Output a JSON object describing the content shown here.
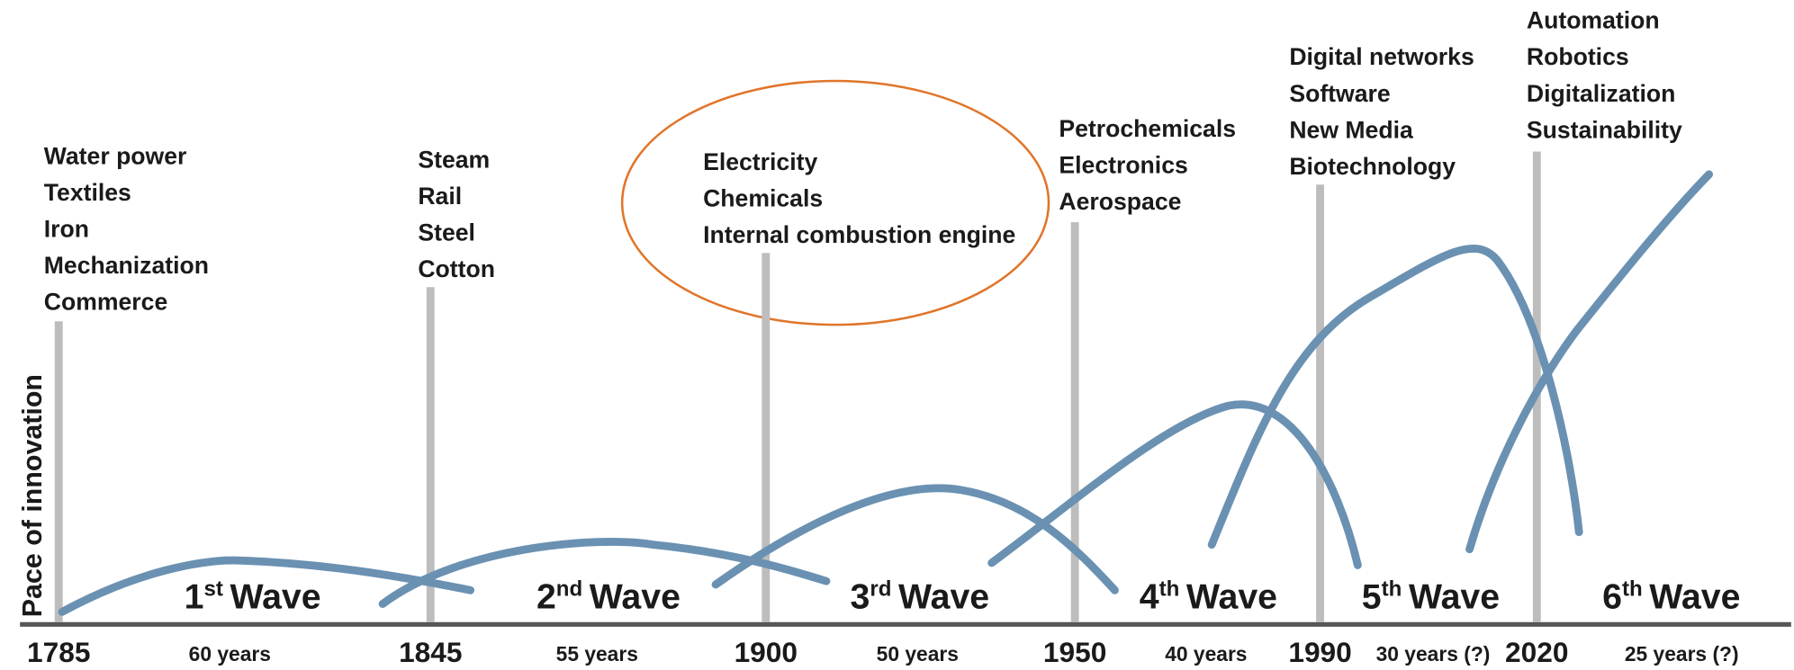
{
  "y_axis_label": "Pace of innovation",
  "years": [
    "1785",
    "1845",
    "1900",
    "1950",
    "1990",
    "2020"
  ],
  "waves": [
    {
      "number": "1",
      "suffix": "st",
      "word": "Wave",
      "duration": "60 years"
    },
    {
      "number": "2",
      "suffix": "nd",
      "word": "Wave",
      "duration": "55 years"
    },
    {
      "number": "3",
      "suffix": "rd",
      "word": "Wave",
      "duration": "50 years"
    },
    {
      "number": "4",
      "suffix": "th",
      "word": "Wave",
      "duration": "40 years"
    },
    {
      "number": "5",
      "suffix": "th",
      "word": "Wave",
      "duration": "30 years (?)"
    },
    {
      "number": "6",
      "suffix": "th",
      "word": "Wave",
      "duration": "25 years (?)"
    }
  ],
  "technologies": [
    [
      "Water power",
      "Textiles",
      "Iron",
      "Mechanization",
      "Commerce"
    ],
    [
      "Steam",
      "Rail",
      "Steel",
      "Cotton"
    ],
    [
      "Electricity",
      "Chemicals",
      "Internal combustion engine"
    ],
    [
      "Petrochemicals",
      "Electronics",
      "Aerospace"
    ],
    [
      "Digital networks",
      "Software",
      "New Media",
      "Biotechnology"
    ],
    [
      "Automation",
      "Robotics",
      "Digitalization",
      "Sustainability"
    ]
  ]
}
